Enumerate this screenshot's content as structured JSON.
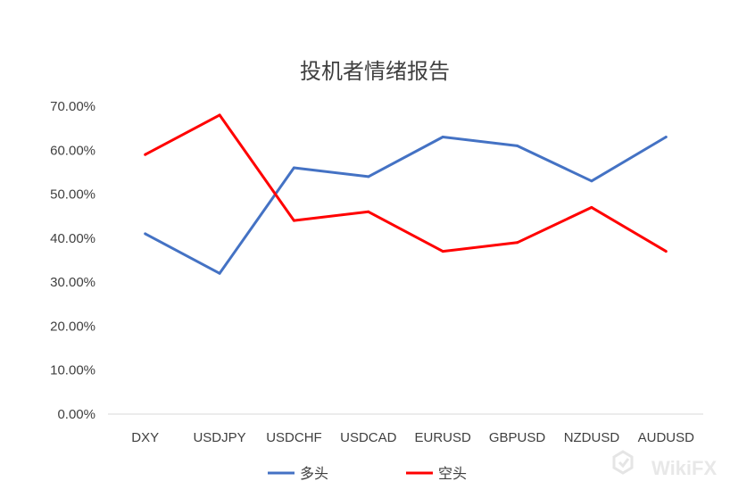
{
  "chart_data": {
    "type": "line",
    "title": "投机者情绪报告",
    "xlabel": "",
    "ylabel": "",
    "categories": [
      "DXY",
      "USDJPY",
      "USDCHF",
      "USDCAD",
      "EURUSD",
      "GBPUSD",
      "NZDUSD",
      "AUDUSD"
    ],
    "yticks": [
      "0.00%",
      "10.00%",
      "20.00%",
      "30.00%",
      "40.00%",
      "50.00%",
      "60.00%",
      "70.00%"
    ],
    "ylim": [
      0,
      70
    ],
    "grid": false,
    "legend": "bottom",
    "series": [
      {
        "name": "多头",
        "color": "#4472c4",
        "values": [
          41,
          32,
          56,
          54,
          63,
          61,
          53,
          63
        ]
      },
      {
        "name": "空头",
        "color": "#ff0000",
        "values": [
          59,
          68,
          44,
          46,
          37,
          39,
          47,
          37
        ]
      }
    ]
  },
  "watermark": {
    "text": "WikiFX",
    "icon": "wikifx-logo-icon"
  }
}
